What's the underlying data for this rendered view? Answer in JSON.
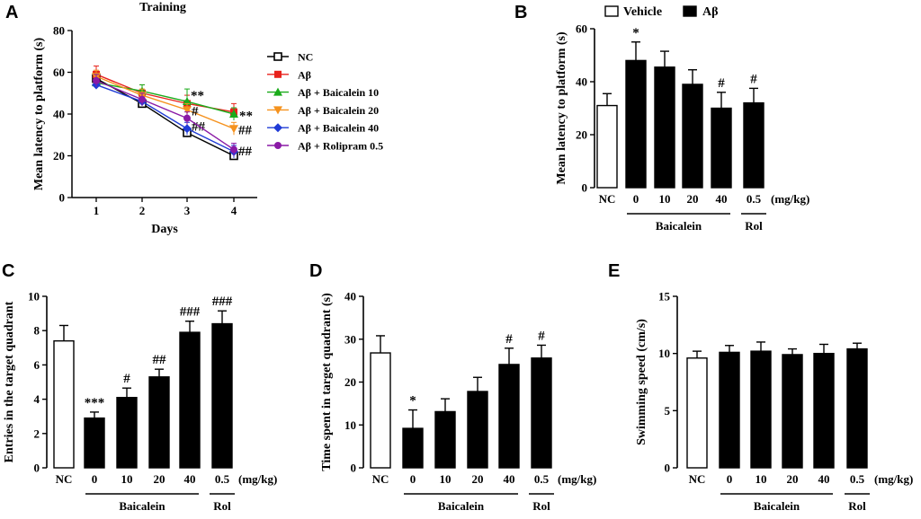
{
  "chart_data": [
    {
      "panel": "A",
      "type": "line",
      "title": "Training",
      "xlabel": "Days",
      "ylabel": "Mean latency to platform (s)",
      "ylim": [
        0,
        80
      ],
      "yticks": [
        "0",
        "20",
        "40",
        "60",
        "80"
      ],
      "x": [
        1,
        2,
        3,
        4
      ],
      "xtick_labels": [
        "1",
        "2",
        "3",
        "4"
      ],
      "series": [
        {
          "name": "NC",
          "color": "#000000",
          "marker": "open-square",
          "values": [
            57,
            45,
            31,
            20
          ],
          "errors": [
            3,
            2,
            2,
            1.5
          ]
        },
        {
          "name": "Aβ",
          "color": "#e8221c",
          "marker": "square",
          "values": [
            59,
            50,
            45,
            41
          ],
          "errors": [
            4,
            4,
            4,
            4
          ],
          "annotations": [
            "",
            "",
            "",
            "**"
          ]
        },
        {
          "name": "Aβ + Baicalein 10",
          "color": "#1aab1a",
          "marker": "triangle-up",
          "values": [
            55,
            51,
            46,
            40
          ],
          "errors": [
            2,
            3,
            6,
            3
          ],
          "annotations": [
            "",
            "",
            "**",
            ""
          ]
        },
        {
          "name": "Aβ + Baicalein 20",
          "color": "#f5921e",
          "marker": "triangle-down",
          "values": [
            58,
            49,
            42,
            33
          ],
          "errors": [
            3,
            3,
            3,
            3
          ],
          "annotations": [
            "",
            "",
            "#",
            "##"
          ]
        },
        {
          "name": "Aβ + Baicalein 40",
          "color": "#1f3bd6",
          "marker": "diamond",
          "values": [
            54,
            46,
            33,
            22
          ],
          "errors": [
            2,
            2,
            3,
            3
          ],
          "annotations": [
            "",
            "",
            "##",
            "##"
          ]
        },
        {
          "name": "Aβ + Rolipram 0.5",
          "color": "#8a1aa6",
          "marker": "circle",
          "values": [
            56,
            47,
            38,
            23
          ],
          "errors": [
            3,
            3,
            3,
            3
          ],
          "annotations": [
            "",
            "",
            "",
            ""
          ]
        }
      ]
    },
    {
      "panel": "B",
      "type": "bar",
      "ylabel": "Mean latency to platform (s)",
      "ylim": [
        0,
        60
      ],
      "yticks": [
        "0",
        "20",
        "40",
        "60"
      ],
      "categories": [
        "NC",
        "0",
        "10",
        "20",
        "40",
        "0.5"
      ],
      "values": [
        31,
        48,
        45.5,
        39,
        30,
        32
      ],
      "errors": [
        4.5,
        7,
        6,
        5.5,
        6,
        5.5
      ],
      "fills": [
        "white",
        "black",
        "black",
        "black",
        "black",
        "black"
      ],
      "annotations": [
        "",
        "*",
        "",
        "",
        "#",
        "#"
      ],
      "unit_label": "(mg/kg)",
      "group_labels": [
        "Baicalein",
        "Rol"
      ],
      "legend": [
        {
          "label": "Vehicle",
          "fill": "white"
        },
        {
          "label": "Aβ",
          "fill": "black"
        }
      ]
    },
    {
      "panel": "C",
      "type": "bar",
      "ylabel": "Entries in the target quadrant",
      "ylim": [
        0,
        10
      ],
      "yticks": [
        "0",
        "2",
        "4",
        "6",
        "8",
        "10"
      ],
      "categories": [
        "NC",
        "0",
        "10",
        "20",
        "40",
        "0.5"
      ],
      "values": [
        7.4,
        2.9,
        4.1,
        5.3,
        7.9,
        8.4
      ],
      "errors": [
        0.9,
        0.35,
        0.55,
        0.45,
        0.65,
        0.75
      ],
      "fills": [
        "white",
        "black",
        "black",
        "black",
        "black",
        "black"
      ],
      "annotations": [
        "",
        "***",
        "#",
        "##",
        "###",
        "###"
      ],
      "unit_label": "(mg/kg)",
      "group_labels": [
        "Baicalein",
        "Rol"
      ]
    },
    {
      "panel": "D",
      "type": "bar",
      "ylabel": "Time spent in target quadrant (s)",
      "ylim": [
        0,
        40
      ],
      "yticks": [
        "0",
        "10",
        "20",
        "30",
        "40"
      ],
      "categories": [
        "NC",
        "0",
        "10",
        "20",
        "40",
        "0.5"
      ],
      "values": [
        26.8,
        9.2,
        13.1,
        17.8,
        24.1,
        25.6
      ],
      "errors": [
        4,
        4.3,
        3,
        3.3,
        3.8,
        3
      ],
      "fills": [
        "white",
        "black",
        "black",
        "black",
        "black",
        "black"
      ],
      "annotations": [
        "",
        "*",
        "",
        "",
        "#",
        "#"
      ],
      "unit_label": "(mg/kg)",
      "group_labels": [
        "Baicalein",
        "Rol"
      ]
    },
    {
      "panel": "E",
      "type": "bar",
      "ylabel": "Swimming speed (cm/s)",
      "ylim": [
        0,
        15
      ],
      "yticks": [
        "0",
        "5",
        "10",
        "15"
      ],
      "categories": [
        "NC",
        "0",
        "10",
        "20",
        "40",
        "0.5"
      ],
      "values": [
        9.6,
        10.1,
        10.2,
        9.9,
        10.0,
        10.4
      ],
      "errors": [
        0.6,
        0.6,
        0.8,
        0.5,
        0.8,
        0.5
      ],
      "fills": [
        "white",
        "black",
        "black",
        "black",
        "black",
        "black"
      ],
      "annotations": [
        "",
        "",
        "",
        "",
        "",
        ""
      ],
      "unit_label": "(mg/kg)",
      "group_labels": [
        "Baicalein",
        "Rol"
      ]
    }
  ]
}
